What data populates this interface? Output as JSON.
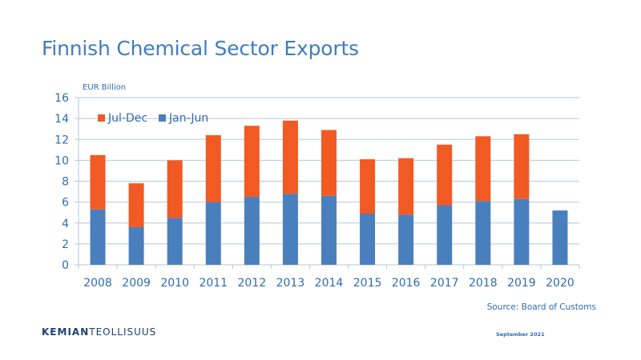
{
  "slide": {
    "title": "Finnish Chemical Sector Exports",
    "source": "Source: Board of Customs",
    "logo_bold": "KEMIAN",
    "logo_light": "TEOLLISUUS",
    "date": "September 2021"
  },
  "colors": {
    "jan_jun": "#4a7fbd",
    "jul_dec": "#f15a22",
    "axis_text": "#2e6bb3",
    "grid": "#b7c7d9"
  },
  "chart_data": {
    "type": "bar",
    "stacked": true,
    "ylabel": "EUR Billion",
    "ylim": [
      0,
      16
    ],
    "yticks": [
      0,
      2,
      4,
      6,
      8,
      10,
      12,
      14,
      16
    ],
    "grid": true,
    "legend_position": "top-left",
    "categories": [
      "2008",
      "2009",
      "2010",
      "2011",
      "2012",
      "2013",
      "2014",
      "2015",
      "2016",
      "2017",
      "2018",
      "2019",
      "2020"
    ],
    "series": [
      {
        "name": "Jan-Jun",
        "values": [
          5.3,
          3.6,
          4.5,
          6.0,
          6.5,
          6.8,
          6.6,
          4.9,
          4.8,
          5.7,
          6.1,
          6.3,
          5.2
        ]
      },
      {
        "name": "Jul-Dec",
        "values": [
          5.2,
          4.2,
          5.5,
          6.4,
          6.8,
          7.0,
          6.3,
          5.2,
          5.4,
          5.8,
          6.2,
          6.2,
          0
        ]
      }
    ]
  }
}
